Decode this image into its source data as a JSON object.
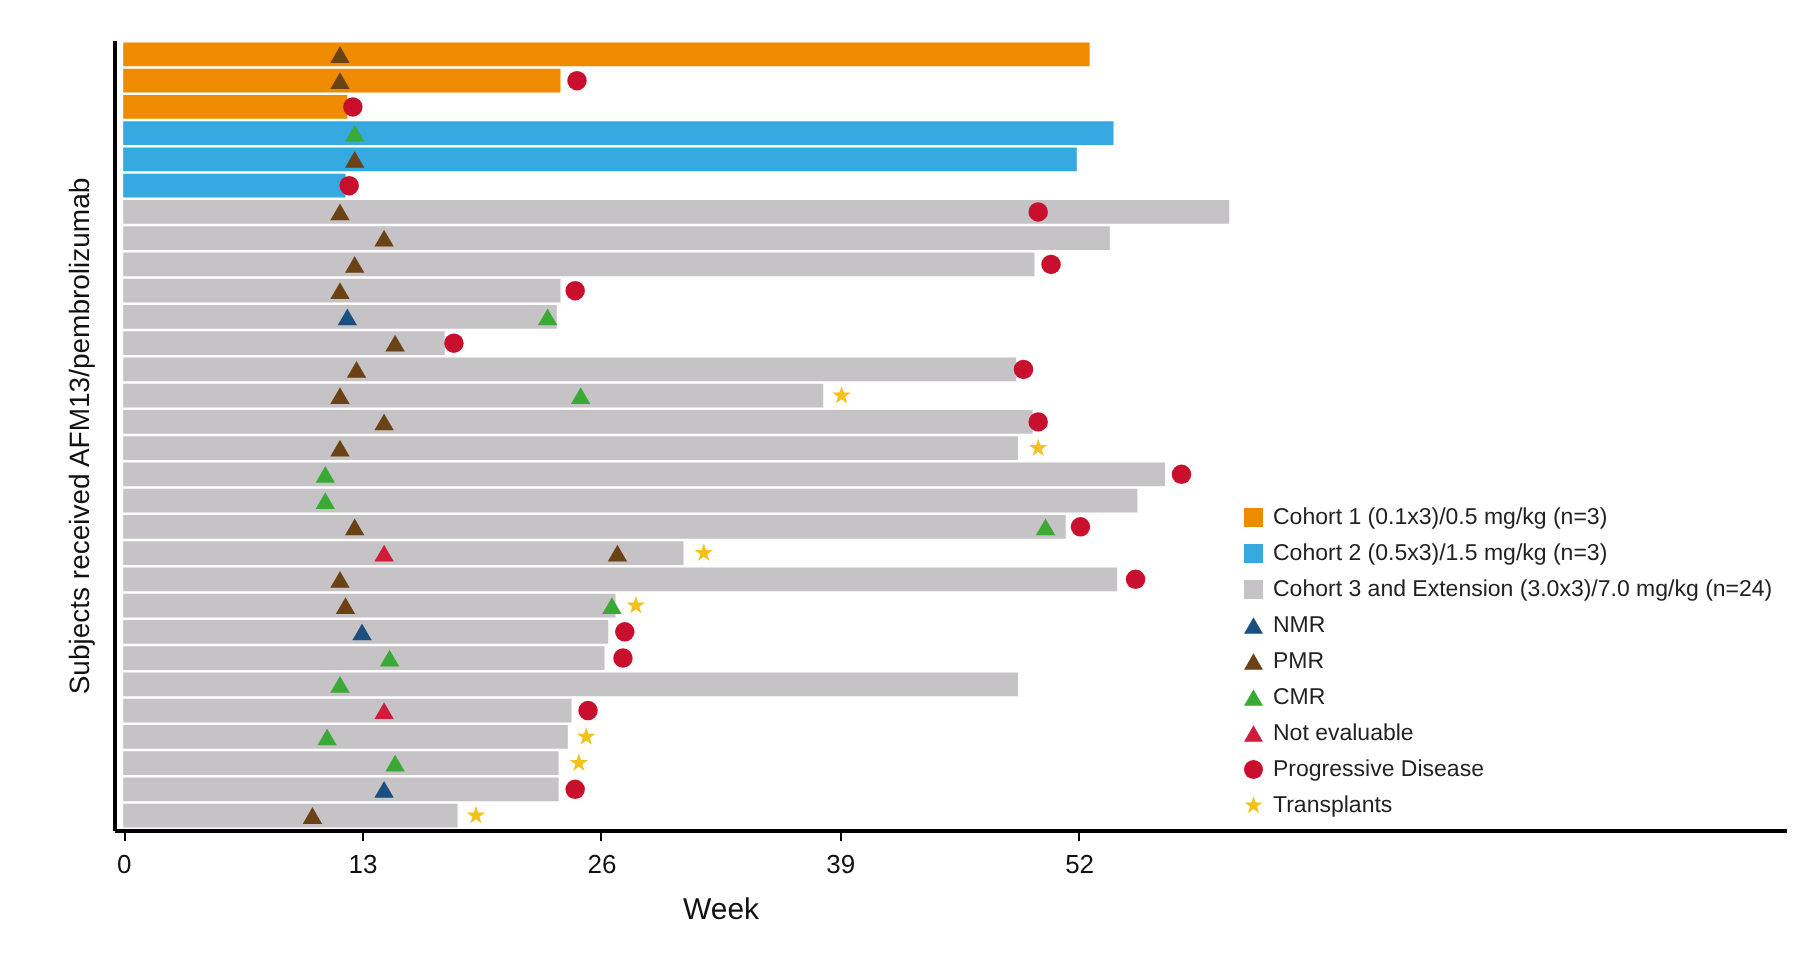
{
  "chart_data": {
    "type": "bar",
    "orientation": "horizontal",
    "xlabel": "Week",
    "ylabel": "Subjects received AFM13/pembrolizumab",
    "categories": [
      null,
      null,
      null,
      null,
      null,
      null,
      null,
      null,
      null,
      null,
      null,
      null,
      null,
      null,
      null,
      null,
      null,
      null,
      null,
      null,
      null,
      null,
      null,
      null,
      null,
      null,
      null,
      null,
      null,
      null
    ],
    "xlim": [
      -0.5,
      90.5
    ],
    "xticks": [
      0,
      13,
      26,
      39,
      52
    ],
    "tick_labels": "x",
    "grid": false,
    "legend": "bottom right",
    "series": [
      {
        "name": "Cohort 1 (0.1x3)/0.5 mg/kg (n=3)",
        "color": "#ef8b00",
        "values": [
          52.6,
          23.8,
          12.2,
          null,
          null,
          null,
          null,
          null,
          null,
          null,
          null,
          null,
          null,
          null,
          null,
          null,
          null,
          null,
          null,
          null,
          null,
          null,
          null,
          null,
          null,
          null,
          null,
          null,
          null,
          null
        ]
      },
      {
        "name": "Cohort 2 (0.5x3)/1.5 mg/kg (n=3)",
        "color": "#37a9e1",
        "values": [
          null,
          null,
          null,
          53.9,
          51.9,
          12.1,
          null,
          null,
          null,
          null,
          null,
          null,
          null,
          null,
          null,
          null,
          null,
          null,
          null,
          null,
          null,
          null,
          null,
          null,
          null,
          null,
          null,
          null,
          null,
          null
        ]
      },
      {
        "name": "Cohort 3 and Extension (3.0x3)/7.0 mg/kg (n=24)",
        "color": "#c6c3c6",
        "values": [
          null,
          null,
          null,
          null,
          null,
          null,
          60.2,
          53.7,
          49.6,
          23.8,
          23.6,
          17.5,
          48.6,
          38.1,
          49.5,
          48.7,
          56.7,
          55.2,
          51.3,
          30.5,
          54.1,
          26.8,
          26.4,
          26.2,
          48.7,
          24.4,
          24.2,
          23.7,
          23.7,
          18.2
        ]
      },
      {
        "name": "NMR",
        "type": "scatter",
        "marker": "triangle",
        "color": "#1b4f80",
        "values": [
          null,
          null,
          null,
          null,
          null,
          null,
          null,
          null,
          null,
          null,
          12.2,
          null,
          null,
          null,
          null,
          null,
          null,
          null,
          null,
          null,
          null,
          null,
          13.0,
          null,
          null,
          null,
          null,
          null,
          14.2,
          null
        ]
      },
      {
        "name": "PMR",
        "type": "scatter",
        "marker": "triangle",
        "color": "#6b4215",
        "values": [
          11.8,
          11.8,
          null,
          null,
          12.6,
          null,
          11.8,
          14.2,
          12.6,
          11.8,
          null,
          14.8,
          12.7,
          11.8,
          14.2,
          11.8,
          null,
          null,
          12.6,
          26.9,
          11.8,
          12.1,
          null,
          null,
          null,
          null,
          null,
          null,
          null,
          10.3
        ]
      },
      {
        "name": "CMR",
        "type": "scatter",
        "marker": "triangle",
        "color": "#3aa935",
        "values": [
          null,
          null,
          null,
          12.6,
          null,
          null,
          null,
          null,
          null,
          null,
          23.1,
          null,
          null,
          24.9,
          null,
          null,
          11.0,
          11.0,
          50.2,
          null,
          null,
          26.6,
          null,
          14.5,
          11.8,
          null,
          11.1,
          14.8,
          null,
          null
        ]
      },
      {
        "name": "Not evaluable",
        "type": "scatter",
        "marker": "triangle",
        "color": "#d01c3c",
        "values": [
          null,
          null,
          null,
          null,
          null,
          null,
          null,
          null,
          null,
          null,
          null,
          null,
          null,
          null,
          null,
          null,
          null,
          null,
          null,
          14.2,
          null,
          null,
          null,
          null,
          null,
          14.2,
          null,
          null,
          null,
          null
        ]
      },
      {
        "name": "Progressive Disease",
        "type": "scatter",
        "marker": "circle",
        "color": "#c8102e",
        "values": [
          null,
          24.7,
          12.5,
          null,
          null,
          12.3,
          49.8,
          null,
          50.5,
          24.6,
          null,
          18.0,
          49.0,
          null,
          49.8,
          null,
          57.6,
          null,
          52.1,
          null,
          55.1,
          null,
          27.3,
          27.2,
          null,
          25.3,
          null,
          null,
          24.6,
          null
        ]
      },
      {
        "name": "Transplants",
        "type": "scatter",
        "marker": "star",
        "color": "#f5c01a",
        "values": [
          null,
          null,
          null,
          null,
          null,
          null,
          null,
          null,
          null,
          null,
          null,
          null,
          null,
          39.1,
          null,
          49.8,
          null,
          null,
          null,
          31.6,
          null,
          27.9,
          null,
          null,
          null,
          null,
          25.2,
          24.8,
          null,
          19.2
        ]
      }
    ]
  }
}
